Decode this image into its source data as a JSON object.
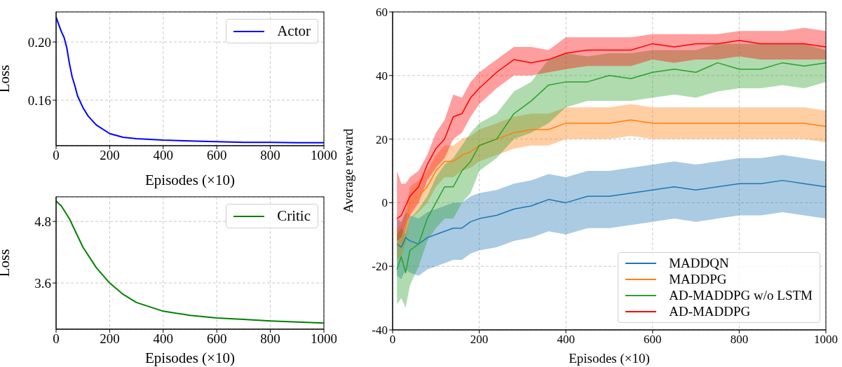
{
  "chart_data": [
    {
      "type": "line",
      "xlabel": "Episodes (×10)",
      "ylabel": "Loss",
      "xlim": [
        0,
        1000
      ],
      "xticks": [
        0,
        200,
        400,
        600,
        800,
        1000
      ],
      "ylim": [
        0.1287,
        0.2207
      ],
      "yticks": [
        0.16,
        {
          "value": 0.2,
          "label": "0.20"
        }
      ],
      "grid": true,
      "legend": "top right",
      "x": [
        0,
        10,
        20,
        30,
        40,
        50,
        60,
        70,
        80,
        100,
        120,
        150,
        200,
        250,
        300,
        400,
        500,
        600,
        700,
        800,
        900,
        1000
      ],
      "series": [
        {
          "name": "Actor",
          "color": "#0000ff",
          "values": [
            0.217,
            0.212,
            0.207,
            0.203,
            0.196,
            0.185,
            0.176,
            0.17,
            0.163,
            0.155,
            0.149,
            0.143,
            0.137,
            0.1345,
            0.1335,
            0.1325,
            0.132,
            0.1315,
            0.131,
            0.131,
            0.1308,
            0.1307
          ]
        }
      ]
    },
    {
      "type": "line",
      "xlabel": "Episodes (×10)",
      "ylabel": "Loss",
      "xlim": [
        0,
        1000
      ],
      "xticks": [
        0,
        200,
        400,
        600,
        800,
        1000
      ],
      "ylim": [
        2.7,
        5.28
      ],
      "yticks": [
        3.6,
        4.8
      ],
      "grid": true,
      "legend": "top right",
      "x": [
        0,
        20,
        50,
        100,
        150,
        200,
        250,
        300,
        400,
        500,
        600,
        700,
        800,
        900,
        1000
      ],
      "series": [
        {
          "name": "Critic",
          "color": "#008000",
          "values": [
            5.2,
            5.1,
            4.85,
            4.3,
            3.9,
            3.6,
            3.38,
            3.22,
            3.05,
            2.97,
            2.92,
            2.89,
            2.86,
            2.84,
            2.82
          ]
        }
      ]
    },
    {
      "type": "line",
      "xlabel": "Episodes (×10)",
      "ylabel": "Average reward",
      "xlim": [
        0,
        1000
      ],
      "xticks": [
        0,
        200,
        400,
        600,
        800,
        1000
      ],
      "ylim": [
        -40,
        60
      ],
      "yticks": [
        -40,
        -20,
        0,
        20,
        40,
        60
      ],
      "grid": true,
      "legend": "bottom right",
      "x": [
        10,
        20,
        30,
        40,
        60,
        80,
        100,
        120,
        140,
        160,
        180,
        200,
        240,
        280,
        320,
        360,
        400,
        450,
        500,
        550,
        600,
        650,
        700,
        750,
        800,
        850,
        900,
        950,
        1000
      ],
      "series": [
        {
          "name": "MADDQN",
          "color": "#1f77b4",
          "values": [
            -13,
            -14,
            -11,
            -12,
            -13,
            -11,
            -10,
            -9,
            -8,
            -8,
            -6,
            -5,
            -4,
            -2,
            -1,
            1,
            0,
            2,
            2,
            3,
            4,
            5,
            4,
            5,
            6,
            6,
            7,
            6,
            5
          ],
          "lower": [
            -23,
            -24,
            -21,
            -22,
            -23,
            -21,
            -20,
            -19,
            -18,
            -18,
            -16,
            -15,
            -14,
            -12,
            -11,
            -9,
            -10,
            -8,
            -8,
            -7,
            -6,
            -5,
            -6,
            -5,
            -4,
            -4,
            -3,
            -4,
            -5
          ],
          "upper": [
            -5,
            -6,
            -3,
            -4,
            -5,
            -3,
            -2,
            -1,
            0,
            0,
            2,
            3,
            4,
            6,
            7,
            9,
            8,
            10,
            10,
            11,
            12,
            13,
            12,
            13,
            14,
            14,
            15,
            14,
            13
          ]
        },
        {
          "name": "MADDPG",
          "color": "#ff7f0e",
          "values": [
            -13,
            -12,
            -8,
            0,
            2,
            5,
            10,
            13,
            13,
            15,
            16,
            18,
            20,
            22,
            23,
            23,
            25,
            25,
            25,
            26,
            25,
            25,
            25,
            25,
            25,
            25,
            25,
            25,
            24
          ],
          "lower": [
            -18,
            -17,
            -13,
            -5,
            -3,
            0,
            5,
            8,
            8,
            10,
            11,
            13,
            15,
            17,
            18,
            18,
            20,
            20,
            20,
            21,
            20,
            20,
            20,
            20,
            20,
            20,
            20,
            20,
            19
          ],
          "upper": [
            -8,
            -7,
            -3,
            5,
            7,
            10,
            15,
            18,
            18,
            20,
            21,
            23,
            25,
            27,
            28,
            28,
            30,
            30,
            30,
            31,
            30,
            30,
            30,
            30,
            30,
            30,
            30,
            30,
            29
          ]
        },
        {
          "name": "AD-MADDPG w/o LSTM",
          "color": "#2ca02c",
          "values": [
            -21,
            -17,
            -22,
            -15,
            -13,
            -5,
            0,
            5,
            5,
            10,
            13,
            18,
            20,
            28,
            32,
            37,
            38,
            38,
            40,
            39,
            41,
            42,
            41,
            44,
            42,
            42,
            44,
            43,
            44
          ],
          "lower": [
            -32,
            -30,
            -33,
            -26,
            -20,
            -12,
            -8,
            -5,
            -5,
            0,
            3,
            10,
            14,
            20,
            22,
            25,
            30,
            32,
            32,
            32,
            33,
            34,
            33,
            35,
            36,
            36,
            37,
            36,
            38
          ],
          "upper": [
            -10,
            -8,
            -10,
            -5,
            -2,
            2,
            8,
            12,
            14,
            18,
            22,
            25,
            28,
            35,
            38,
            45,
            47,
            46,
            47,
            47,
            48,
            48,
            48,
            50,
            50,
            50,
            50,
            50,
            48
          ]
        },
        {
          "name": "AD-MADDPG",
          "color": "#ff0000",
          "values": [
            -5,
            -4,
            -1,
            2,
            5,
            12,
            17,
            20,
            27,
            28,
            33,
            36,
            41,
            45,
            44,
            45,
            47,
            48,
            48,
            48,
            50,
            49,
            50,
            50,
            51,
            50,
            50,
            50,
            49
          ],
          "lower": [
            -12,
            -11,
            -7,
            -4,
            0,
            7,
            11,
            14,
            20,
            22,
            27,
            31,
            36,
            40,
            40,
            41,
            42,
            43,
            43,
            43,
            45,
            44,
            45,
            45,
            46,
            45,
            45,
            45,
            45
          ],
          "upper": [
            10,
            6,
            6,
            8,
            10,
            15,
            22,
            26,
            34,
            33,
            38,
            41,
            45,
            49,
            49,
            48,
            52,
            52,
            52,
            52,
            53,
            53,
            53,
            53,
            54,
            54,
            54,
            55,
            54
          ]
        }
      ]
    }
  ]
}
